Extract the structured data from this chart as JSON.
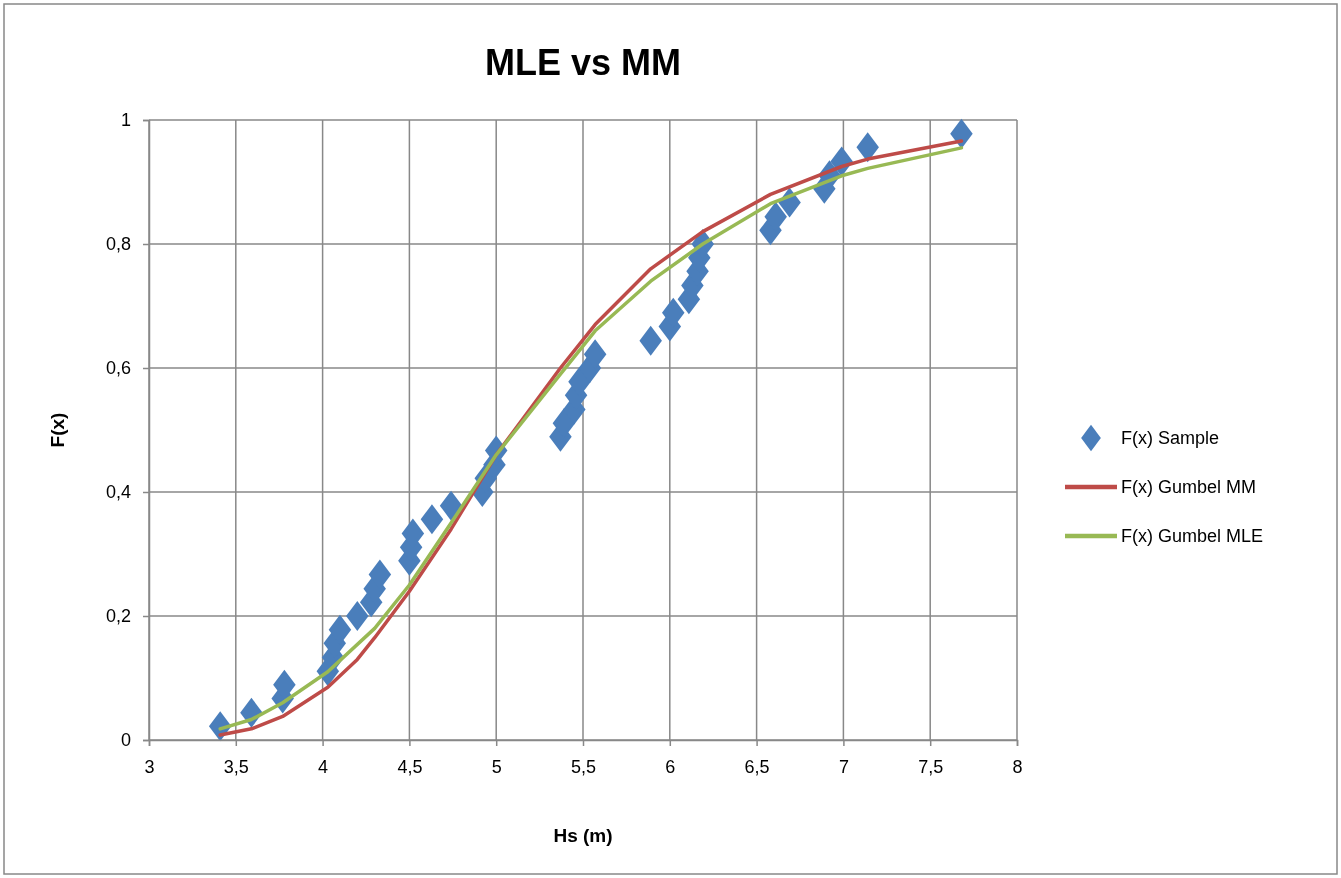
{
  "chart_data": {
    "type": "scatter",
    "title": "MLE vs MM",
    "xlabel": "Hs (m)",
    "ylabel": "F(x)",
    "xlim": [
      3,
      8
    ],
    "xticks": [
      3,
      {
        "value": 3.5,
        "label": "3,5"
      },
      4,
      {
        "value": 4.5,
        "label": "4,5"
      },
      5,
      {
        "value": 5.5,
        "label": "5,5"
      },
      6,
      {
        "value": 6.5,
        "label": "6,5"
      },
      7,
      {
        "value": 7.5,
        "label": "7,5"
      },
      8
    ],
    "ylim": [
      0,
      1
    ],
    "yticks": [
      0,
      {
        "value": 0.2,
        "label": "0,2"
      },
      {
        "value": 0.4,
        "label": "0,4"
      },
      {
        "value": 0.6,
        "label": "0,6"
      },
      {
        "value": 0.8,
        "label": "0,8"
      },
      1
    ],
    "grid": true,
    "legend": "right",
    "series": [
      {
        "name": "F(x) Sample",
        "marker": "diamond",
        "color": "#4a7ebb",
        "x": [
          3.41,
          3.59,
          3.77,
          3.78,
          4.03,
          4.06,
          4.07,
          4.1,
          4.2,
          4.28,
          4.3,
          4.33,
          4.5,
          4.51,
          4.52,
          4.63,
          4.74,
          4.92,
          4.94,
          4.99,
          5.0,
          5.37,
          5.39,
          5.45,
          5.46,
          5.48,
          5.54,
          5.57,
          5.89,
          6.0,
          6.02,
          6.11,
          6.13,
          6.16,
          6.17,
          6.19,
          6.58,
          6.61,
          6.69,
          6.89,
          6.92,
          6.99,
          7.14,
          7.68
        ],
        "values": [
          0.022,
          0.044,
          0.067,
          0.089,
          0.111,
          0.133,
          0.156,
          0.178,
          0.2,
          0.222,
          0.244,
          0.267,
          0.289,
          0.311,
          0.333,
          0.356,
          0.378,
          0.4,
          0.422,
          0.444,
          0.467,
          0.489,
          0.511,
          0.533,
          0.556,
          0.578,
          0.6,
          0.622,
          0.644,
          0.667,
          0.689,
          0.711,
          0.733,
          0.756,
          0.778,
          0.8,
          0.822,
          0.844,
          0.867,
          0.889,
          0.911,
          0.933,
          0.956,
          0.978
        ]
      },
      {
        "name": "F(x) Gumbel MM",
        "type": "line",
        "marker": "none",
        "line_style": "solid",
        "color": "#be4b48",
        "x": [
          3.41,
          3.59,
          3.77,
          4.03,
          4.2,
          4.3,
          4.5,
          4.74,
          5.0,
          5.37,
          5.57,
          5.89,
          6.19,
          6.58,
          6.99,
          7.14,
          7.68
        ],
        "values": [
          0.008,
          0.018,
          0.038,
          0.085,
          0.13,
          0.165,
          0.24,
          0.34,
          0.46,
          0.6,
          0.67,
          0.76,
          0.82,
          0.88,
          0.925,
          0.937,
          0.966
        ]
      },
      {
        "name": "F(x) Gumbel MLE",
        "type": "line",
        "marker": "none",
        "line_style": "solid",
        "color": "#98b954",
        "x": [
          3.41,
          3.59,
          3.77,
          4.03,
          4.3,
          4.5,
          4.74,
          5.0,
          5.37,
          5.57,
          5.89,
          6.19,
          6.58,
          6.99,
          7.14,
          7.68
        ],
        "values": [
          0.018,
          0.033,
          0.06,
          0.11,
          0.18,
          0.25,
          0.35,
          0.46,
          0.59,
          0.66,
          0.74,
          0.8,
          0.865,
          0.91,
          0.922,
          0.955
        ]
      }
    ]
  }
}
